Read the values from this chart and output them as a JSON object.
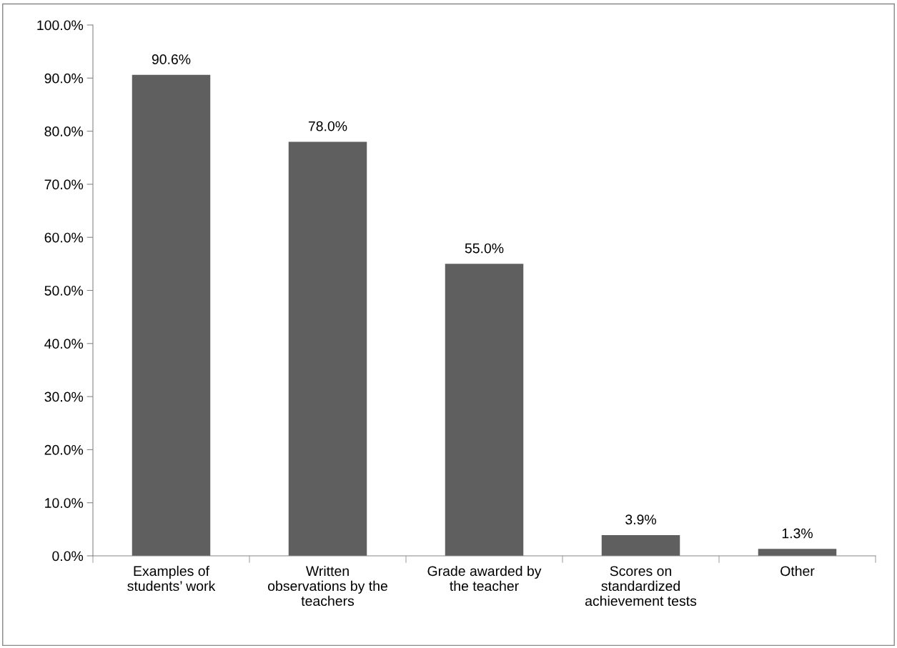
{
  "chart_data": {
    "type": "bar",
    "categories": [
      "Examples of\nstudents’ work",
      "Written\nobservations by the\nteachers",
      "Grade awarded by\nthe teacher",
      "Scores on\nstandardized\nachievement tests",
      "Other"
    ],
    "values": [
      90.6,
      78.0,
      55.0,
      3.9,
      1.3
    ],
    "value_labels": [
      "90.6%",
      "78.0%",
      "55.0%",
      "3.9%",
      "1.3%"
    ],
    "color": "#5f5f5f",
    "ylim": [
      0,
      100
    ],
    "yticks": [
      {
        "value": 0,
        "label": "0.0%"
      },
      {
        "value": 10,
        "label": "10.0%"
      },
      {
        "value": 20,
        "label": "20.0%"
      },
      {
        "value": 30,
        "label": "30.0%"
      },
      {
        "value": 40,
        "label": "40.0%"
      },
      {
        "value": 50,
        "label": "50.0%"
      },
      {
        "value": 60,
        "label": "60.0%"
      },
      {
        "value": 70,
        "label": "70.0%"
      },
      {
        "value": 80,
        "label": "80.0%"
      },
      {
        "value": 90,
        "label": "90.0%"
      },
      {
        "value": 100,
        "label": "100.0%"
      }
    ],
    "grid": false,
    "legend": false
  }
}
